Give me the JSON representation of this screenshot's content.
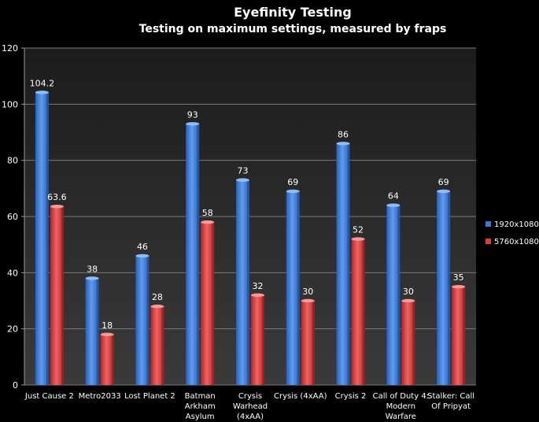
{
  "chart_data": {
    "type": "bar",
    "title": "Eyefinity Testing",
    "subtitle": "Testing on maximum settings, measured by fraps",
    "xlabel": "",
    "ylabel": "",
    "ylim": [
      0,
      120
    ],
    "y_ticks": [
      0,
      20,
      40,
      60,
      80,
      100,
      120
    ],
    "grid": true,
    "legend_position": "right",
    "categories": [
      [
        "Just Cause 2"
      ],
      [
        "Metro2033"
      ],
      [
        "Lost Planet 2"
      ],
      [
        "Batman",
        "Arkham",
        "Asylum"
      ],
      [
        "Crysis",
        "Warhead",
        "(4xAA)"
      ],
      [
        "Crysis (4xAA)"
      ],
      [
        "Crysis 2"
      ],
      [
        "Call of Duty 4:",
        "Modern",
        "Warfare"
      ],
      [
        "Stalker: Call",
        "Of Pripyat"
      ]
    ],
    "series": [
      {
        "name": "1920x1080",
        "color": "#3a78dc",
        "values": [
          104.2,
          38,
          46,
          93,
          73,
          69,
          86,
          64,
          69
        ],
        "labels": [
          "104.2",
          "38",
          "46",
          "93",
          "73",
          "69",
          "86",
          "64",
          "69"
        ]
      },
      {
        "name": "5760x1080",
        "color": "#dd3a3a",
        "values": [
          63.6,
          18,
          28,
          58,
          32,
          30,
          52,
          30,
          35
        ],
        "labels": [
          "63.6",
          "18",
          "28",
          "58",
          "32",
          "30",
          "52",
          "30",
          "35"
        ]
      }
    ]
  }
}
